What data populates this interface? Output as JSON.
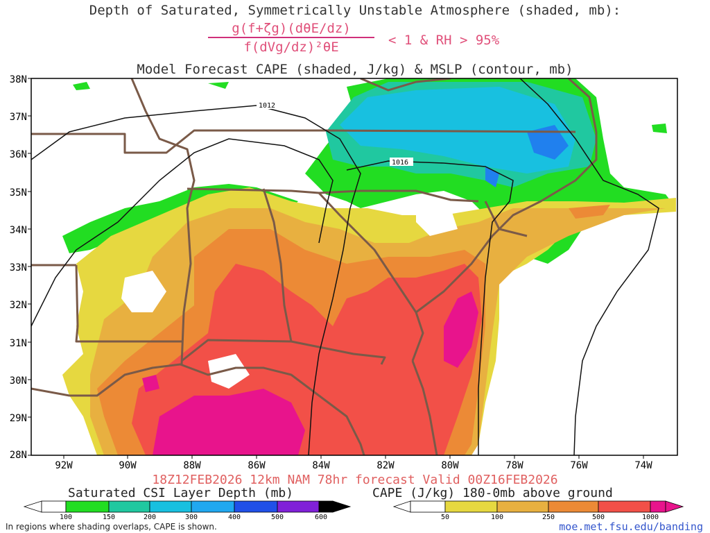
{
  "header": {
    "title_line1": "Depth of Saturated, Symmetrically Unstable Atmosphere (shaded, mb):",
    "formula_numerator": "g(f+ζg)(dθE/dz)",
    "formula_denominator": "f(dVg/dz)²θE",
    "formula_condition": "< 1 & RH > 95%",
    "title_line3": "Model Forecast CAPE (shaded, J/kg) & MSLP (contour, mb)"
  },
  "map": {
    "lat_labels": [
      "38N",
      "37N",
      "36N",
      "35N",
      "34N",
      "33N",
      "32N",
      "31N",
      "30N",
      "29N",
      "28N"
    ],
    "lon_labels": [
      "92W",
      "90W",
      "88W",
      "86W",
      "84W",
      "82W",
      "80W",
      "78W",
      "76W",
      "74W"
    ],
    "isobar_labels": [
      "1012",
      "1016"
    ],
    "colors": {
      "csi_green": "#22dd22",
      "csi_teal": "#20c8a0",
      "csi_cyan": "#18c0e0",
      "csi_blue": "#2080ee",
      "cape_yellow": "#e6d840",
      "cape_lorange": "#e8b040",
      "cape_orange": "#ec8a36",
      "cape_red": "#f25048",
      "cape_magenta": "#e8148c",
      "borders": "#7a5a48"
    }
  },
  "footer": {
    "valid_line": "18Z12FEB2026 12km NAM 78hr forecast Valid 00Z16FEB2026",
    "legend_left_title": "Saturated CSI Layer Depth (mb)",
    "legend_left_ticks": [
      "100",
      "150",
      "200",
      "300",
      "400",
      "500",
      "600"
    ],
    "legend_right_title": "CAPE (J/kg) 180-0mb above ground",
    "legend_right_ticks": [
      "50",
      "100",
      "250",
      "500",
      "1000"
    ],
    "note": "In regions where shading overlaps, CAPE is shown.",
    "url": "moe.met.fsu.edu/banding"
  }
}
